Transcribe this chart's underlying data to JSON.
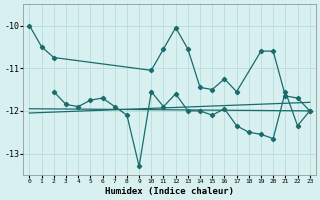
{
  "xlabel": "Humidex (Indice chaleur)",
  "bg_color": "#d8f0f0",
  "line_color": "#1a6b6b",
  "grid_color": "#b0d8d8",
  "xlim": [
    -0.5,
    23.5
  ],
  "ylim": [
    -13.5,
    -9.5
  ],
  "yticks": [
    -13,
    -12,
    -11,
    -10
  ],
  "xticks": [
    0,
    1,
    2,
    3,
    4,
    5,
    6,
    7,
    8,
    9,
    10,
    11,
    12,
    13,
    14,
    15,
    16,
    17,
    18,
    19,
    20,
    21,
    22,
    23
  ],
  "series1_x": [
    0,
    1,
    2,
    10,
    11,
    12,
    13,
    14,
    15,
    16,
    17,
    19,
    20,
    21,
    22,
    23
  ],
  "series1_y": [
    -10.0,
    -10.5,
    -10.75,
    -11.05,
    -10.55,
    -10.05,
    -10.55,
    -11.45,
    -11.5,
    -11.25,
    -11.55,
    -10.6,
    -10.6,
    -11.65,
    -11.7,
    -12.0
  ],
  "series2_x": [
    0,
    23
  ],
  "series2_y": [
    -12.05,
    -11.8
  ],
  "series3_x": [
    2,
    3,
    4,
    5,
    6,
    7,
    8,
    9,
    10,
    11,
    12,
    13,
    14,
    15,
    16,
    17,
    18,
    19,
    20,
    21,
    22,
    23
  ],
  "series3_y": [
    -11.55,
    -11.85,
    -11.9,
    -11.75,
    -11.7,
    -11.9,
    -12.1,
    -13.3,
    -11.55,
    -11.9,
    -11.6,
    -12.0,
    -12.0,
    -12.1,
    -11.95,
    -12.35,
    -12.5,
    -12.55,
    -12.65,
    -11.55,
    -12.35,
    -12.0
  ],
  "series4_x": [
    0,
    23
  ],
  "series4_y": [
    -11.95,
    -12.0
  ]
}
